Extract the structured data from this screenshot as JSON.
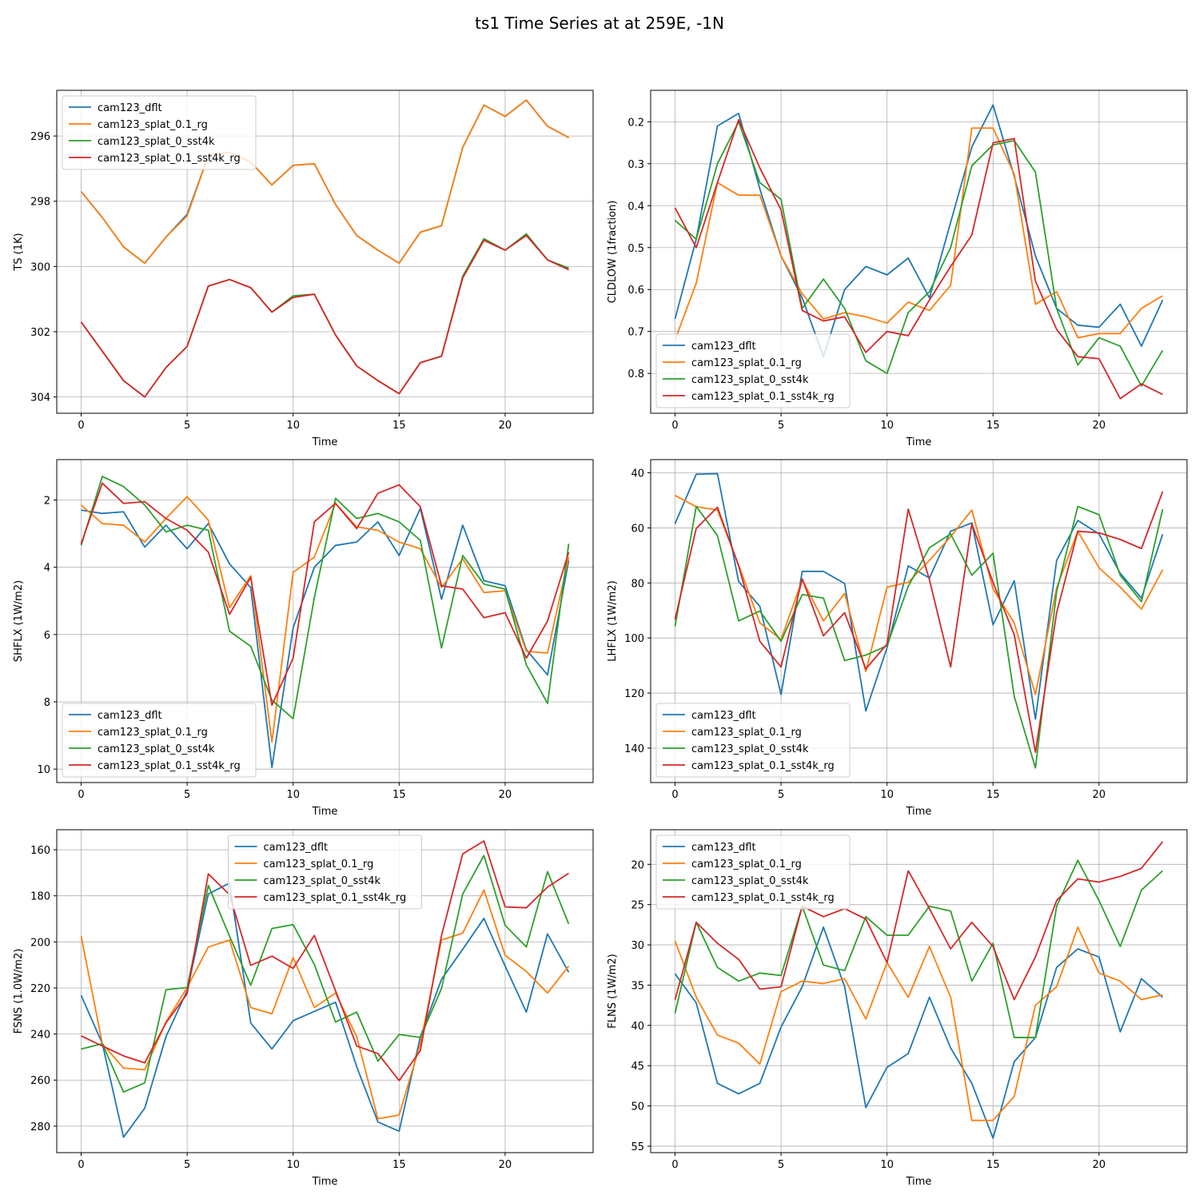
{
  "suptitle": "ts1 Time Series at at 259E, -1N",
  "series_names": [
    "cam123_dflt",
    "cam123_splat_0.1_rg",
    "cam123_splat_0_sst4k",
    "cam123_splat_0.1_sst4k_rg"
  ],
  "series_colors": [
    "#1f77b4",
    "#ff7f0e",
    "#2ca02c",
    "#d62728"
  ],
  "chart_data": [
    {
      "type": "line",
      "title": "",
      "xlabel": "Time",
      "ylabel": "TS (1K)",
      "xlim": [
        -1.15,
        24.15
      ],
      "ylim": [
        304.5,
        294.6
      ],
      "xticks": [
        0,
        5,
        10,
        15,
        20
      ],
      "yticks": [
        296,
        298,
        300,
        302,
        304
      ],
      "legend": "upper-left",
      "x": [
        0,
        1,
        2,
        3,
        4,
        5,
        6,
        7,
        8,
        9,
        10,
        11,
        12,
        13,
        14,
        15,
        16,
        17,
        18,
        19,
        20,
        21,
        22,
        23
      ],
      "series": [
        {
          "name": "cam123_dflt",
          "values": [
            297.7,
            298.5,
            299.4,
            299.9,
            299.1,
            298.4,
            296.6,
            296.5,
            296.8,
            297.5,
            296.9,
            296.85,
            298.1,
            299.05,
            299.5,
            299.9,
            298.95,
            298.75,
            296.35,
            295.05,
            295.4,
            294.9,
            295.7,
            296.05
          ]
        },
        {
          "name": "cam123_splat_0.1_rg",
          "values": [
            297.7,
            298.5,
            299.4,
            299.9,
            299.1,
            298.45,
            296.6,
            296.5,
            296.8,
            297.5,
            296.9,
            296.85,
            298.1,
            299.05,
            299.5,
            299.9,
            298.95,
            298.75,
            296.35,
            295.05,
            295.4,
            294.9,
            295.7,
            296.05
          ]
        },
        {
          "name": "cam123_splat_0_sst4k",
          "values": [
            301.7,
            302.6,
            303.5,
            304.0,
            303.1,
            302.45,
            300.6,
            300.4,
            300.65,
            301.4,
            300.9,
            300.85,
            302.1,
            303.05,
            303.5,
            303.9,
            302.95,
            302.75,
            300.3,
            299.15,
            299.5,
            299.0,
            299.8,
            300.05
          ]
        },
        {
          "name": "cam123_splat_0.1_sst4k_rg",
          "values": [
            301.7,
            302.6,
            303.5,
            304.0,
            303.1,
            302.45,
            300.6,
            300.4,
            300.65,
            301.4,
            300.95,
            300.85,
            302.1,
            303.05,
            303.5,
            303.9,
            302.95,
            302.75,
            300.35,
            299.2,
            299.5,
            299.05,
            299.8,
            300.1
          ]
        }
      ]
    },
    {
      "type": "line",
      "title": "",
      "xlabel": "Time",
      "ylabel": "CLDLOW (1fraction)",
      "xlim": [
        -1.15,
        24.15
      ],
      "ylim": [
        0.895,
        0.125
      ],
      "xticks": [
        0,
        5,
        10,
        15,
        20
      ],
      "yticks": [
        0.2,
        0.3,
        0.4,
        0.5,
        0.6,
        0.7,
        0.8
      ],
      "legend": "lower-left",
      "x": [
        0,
        1,
        2,
        3,
        4,
        5,
        6,
        7,
        8,
        9,
        10,
        11,
        12,
        13,
        14,
        15,
        16,
        17,
        18,
        19,
        20,
        21,
        22,
        23
      ],
      "series": [
        {
          "name": "cam123_dflt",
          "values": [
            0.67,
            0.48,
            0.21,
            0.18,
            0.36,
            0.52,
            0.62,
            0.76,
            0.6,
            0.545,
            0.565,
            0.525,
            0.62,
            0.44,
            0.26,
            0.16,
            0.33,
            0.52,
            0.645,
            0.685,
            0.69,
            0.635,
            0.735,
            0.625
          ]
        },
        {
          "name": "cam123_splat_0.1_rg",
          "values": [
            0.72,
            0.585,
            0.345,
            0.375,
            0.375,
            0.52,
            0.61,
            0.67,
            0.655,
            0.665,
            0.68,
            0.63,
            0.65,
            0.59,
            0.215,
            0.215,
            0.325,
            0.635,
            0.605,
            0.715,
            0.705,
            0.705,
            0.645,
            0.615
          ]
        },
        {
          "name": "cam123_splat_0_sst4k",
          "values": [
            0.435,
            0.48,
            0.3,
            0.2,
            0.345,
            0.385,
            0.645,
            0.575,
            0.645,
            0.77,
            0.8,
            0.655,
            0.605,
            0.5,
            0.305,
            0.255,
            0.245,
            0.32,
            0.645,
            0.78,
            0.715,
            0.735,
            0.83,
            0.745
          ]
        },
        {
          "name": "cam123_splat_0.1_sst4k_rg",
          "values": [
            0.405,
            0.5,
            0.345,
            0.195,
            0.31,
            0.41,
            0.65,
            0.675,
            0.665,
            0.75,
            0.7,
            0.71,
            0.625,
            0.545,
            0.47,
            0.25,
            0.24,
            0.58,
            0.695,
            0.76,
            0.765,
            0.86,
            0.825,
            0.85
          ]
        }
      ]
    },
    {
      "type": "line",
      "title": "",
      "xlabel": "Time",
      "ylabel": "SHFLX (1W/m2)",
      "xlim": [
        -1.15,
        24.15
      ],
      "ylim": [
        10.4,
        0.8
      ],
      "xticks": [
        0,
        5,
        10,
        15,
        20
      ],
      "yticks": [
        2,
        4,
        6,
        8,
        10
      ],
      "legend": "lower-left",
      "x": [
        0,
        1,
        2,
        3,
        4,
        5,
        6,
        7,
        8,
        9,
        10,
        11,
        12,
        13,
        14,
        15,
        16,
        17,
        18,
        19,
        20,
        21,
        22,
        23
      ],
      "series": [
        {
          "name": "cam123_dflt",
          "values": [
            2.3,
            2.4,
            2.35,
            3.4,
            2.75,
            3.45,
            2.7,
            3.9,
            4.6,
            9.95,
            5.8,
            4.0,
            3.35,
            3.25,
            2.65,
            3.65,
            2.25,
            4.95,
            2.75,
            4.4,
            4.55,
            6.45,
            7.2,
            3.8
          ]
        },
        {
          "name": "cam123_splat_0.1_rg",
          "values": [
            2.15,
            2.7,
            2.75,
            3.25,
            2.55,
            1.9,
            2.6,
            5.2,
            4.25,
            9.2,
            4.15,
            3.7,
            2.1,
            2.8,
            2.9,
            3.25,
            3.45,
            4.6,
            3.75,
            4.75,
            4.7,
            6.5,
            6.55,
            3.7
          ]
        },
        {
          "name": "cam123_splat_0_sst4k",
          "values": [
            3.35,
            1.3,
            1.6,
            2.15,
            2.95,
            2.75,
            2.9,
            5.9,
            6.35,
            7.95,
            8.5,
            4.9,
            1.95,
            2.55,
            2.4,
            2.65,
            3.2,
            6.4,
            3.65,
            4.5,
            4.65,
            6.9,
            8.05,
            3.3
          ]
        },
        {
          "name": "cam123_splat_0.1_sst4k_rg",
          "values": [
            3.3,
            1.5,
            2.1,
            2.05,
            2.55,
            2.9,
            3.55,
            5.4,
            4.3,
            8.1,
            6.7,
            2.65,
            2.1,
            2.85,
            1.8,
            1.55,
            2.2,
            4.55,
            4.65,
            5.5,
            5.35,
            6.7,
            5.6,
            3.55
          ]
        }
      ]
    },
    {
      "type": "line",
      "title": "",
      "xlabel": "Time",
      "ylabel": "LHFLX (1W/m2)",
      "xlim": [
        -1.15,
        24.15
      ],
      "ylim": [
        152.5,
        35.2
      ],
      "xticks": [
        0,
        5,
        10,
        15,
        20
      ],
      "yticks": [
        40,
        60,
        80,
        100,
        120,
        140
      ],
      "legend": "lower-left",
      "x": [
        0,
        1,
        2,
        3,
        4,
        5,
        6,
        7,
        8,
        9,
        10,
        11,
        12,
        13,
        14,
        15,
        16,
        17,
        18,
        19,
        20,
        21,
        22,
        23
      ],
      "series": [
        {
          "name": "cam123_dflt",
          "values": [
            58.5,
            40.5,
            40.3,
            79.5,
            88.5,
            120.5,
            75.8,
            75.8,
            80.2,
            126.5,
            103.5,
            73.8,
            78.2,
            61.2,
            58.2,
            95.2,
            79.2,
            129.5,
            71.8,
            57.3,
            62.2,
            76.5,
            85.5,
            62.3
          ]
        },
        {
          "name": "cam123_splat_0.1_rg",
          "values": [
            48.2,
            52.3,
            53.5,
            73.5,
            94.5,
            100.5,
            78.8,
            93.8,
            83.8,
            112.2,
            81.5,
            79.8,
            71.8,
            63.2,
            53.5,
            82.2,
            94.5,
            120.5,
            81.8,
            61.2,
            74.5,
            81.5,
            89.5,
            75.2
          ]
        },
        {
          "name": "cam123_splat_0_sst4k",
          "values": [
            95.8,
            52.2,
            62.8,
            93.8,
            90.2,
            101.2,
            84.2,
            85.5,
            108.2,
            106.2,
            102.8,
            81.2,
            67.2,
            62.2,
            77.2,
            69.2,
            121.2,
            147.2,
            83.2,
            52.2,
            55.2,
            77.2,
            86.8,
            53.2
          ]
        },
        {
          "name": "cam123_splat_0.1_sst4k_rg",
          "values": [
            93.2,
            60.2,
            52.5,
            73.8,
            101.2,
            110.5,
            78.5,
            99.2,
            90.8,
            111.2,
            102.2,
            53.2,
            78.8,
            110.5,
            58.5,
            79.8,
            98.8,
            141.5,
            90.8,
            61.2,
            61.8,
            64.2,
            67.5,
            46.8
          ]
        }
      ]
    },
    {
      "type": "line",
      "title": "",
      "xlabel": "Time",
      "ylabel": "FSNS (1.0W/m2)",
      "xlim": [
        -1.15,
        24.15
      ],
      "ylim": [
        291.5,
        151.3
      ],
      "xticks": [
        0,
        5,
        10,
        15,
        20
      ],
      "yticks": [
        160,
        180,
        200,
        220,
        240,
        260,
        280
      ],
      "legend": "upper-center",
      "x": [
        0,
        1,
        2,
        3,
        4,
        5,
        6,
        7,
        8,
        9,
        10,
        11,
        12,
        13,
        14,
        15,
        16,
        17,
        18,
        19,
        20,
        21,
        22,
        23
      ],
      "series": [
        {
          "name": "cam123_dflt",
          "values": [
            223.2,
            244.2,
            284.8,
            272.2,
            241.2,
            221.2,
            179.2,
            174.5,
            235.2,
            246.5,
            234.2,
            230.2,
            226.2,
            254.2,
            278.2,
            282.2,
            241.2,
            216.2,
            203.2,
            189.8,
            210.5,
            230.5,
            196.5,
            213.2
          ]
        },
        {
          "name": "cam123_splat_0.1_rg",
          "values": [
            197.5,
            244.2,
            254.8,
            255.5,
            234.8,
            219.8,
            202.2,
            199.2,
            228.5,
            231.2,
            206.8,
            228.5,
            222.2,
            241.2,
            276.8,
            275.2,
            244.2,
            199.2,
            196.2,
            177.5,
            205.8,
            212.8,
            222.2,
            210.5
          ]
        },
        {
          "name": "cam123_splat_0_sst4k",
          "values": [
            246.5,
            244.2,
            265.2,
            261.2,
            220.8,
            219.8,
            175.5,
            197.5,
            218.8,
            194.2,
            192.5,
            209.8,
            234.8,
            230.5,
            251.8,
            240.2,
            241.5,
            220.2,
            179.2,
            162.5,
            192.8,
            202.2,
            169.5,
            192.2
          ]
        },
        {
          "name": "cam123_splat_0.1_sst4k_rg",
          "values": [
            240.8,
            245.2,
            249.5,
            252.5,
            235.2,
            222.5,
            170.5,
            179.5,
            210.2,
            206.2,
            211.5,
            197.2,
            221.2,
            245.2,
            248.5,
            260.2,
            247.2,
            197.2,
            161.8,
            156.2,
            184.8,
            185.2,
            176.2,
            170.2
          ]
        }
      ]
    },
    {
      "type": "line",
      "title": "",
      "xlabel": "Time",
      "ylabel": "FLNS (1W/m2)",
      "xlim": [
        -1.15,
        24.15
      ],
      "ylim": [
        55.8,
        15.7
      ],
      "xticks": [
        0,
        5,
        10,
        15,
        20
      ],
      "yticks": [
        20,
        25,
        30,
        35,
        40,
        45,
        50,
        55
      ],
      "legend": "upper-left",
      "x": [
        0,
        1,
        2,
        3,
        4,
        5,
        6,
        7,
        8,
        9,
        10,
        11,
        12,
        13,
        14,
        15,
        16,
        17,
        18,
        19,
        20,
        21,
        22,
        23
      ],
      "series": [
        {
          "name": "cam123_dflt",
          "values": [
            33.6,
            37.2,
            47.2,
            48.5,
            47.2,
            40.2,
            35.2,
            27.8,
            35.2,
            50.2,
            45.2,
            43.5,
            36.5,
            42.8,
            47.2,
            54.0,
            44.5,
            41.5,
            32.8,
            30.5,
            31.5,
            40.8,
            34.2,
            36.5
          ]
        },
        {
          "name": "cam123_splat_0.1_rg",
          "values": [
            29.5,
            36.5,
            41.2,
            42.2,
            44.8,
            35.8,
            34.5,
            34.8,
            34.2,
            39.2,
            32.2,
            36.5,
            30.2,
            36.5,
            51.8,
            51.8,
            48.8,
            37.5,
            35.2,
            27.8,
            33.5,
            34.5,
            36.8,
            36.2
          ]
        },
        {
          "name": "cam123_splat_0_sst4k",
          "values": [
            38.5,
            27.2,
            32.8,
            34.5,
            33.5,
            33.8,
            25.2,
            32.5,
            33.2,
            26.5,
            28.8,
            28.8,
            25.2,
            25.8,
            34.5,
            29.8,
            41.5,
            41.5,
            25.2,
            19.5,
            24.5,
            30.2,
            23.2,
            20.8
          ]
        },
        {
          "name": "cam123_splat_0.1_sst4k_rg",
          "values": [
            36.8,
            27.2,
            29.8,
            31.8,
            35.5,
            35.2,
            25.2,
            26.5,
            25.5,
            26.8,
            32.2,
            20.8,
            25.5,
            30.5,
            27.2,
            30.2,
            36.8,
            31.5,
            24.5,
            21.8,
            22.2,
            21.5,
            20.5,
            17.2
          ]
        }
      ]
    }
  ]
}
